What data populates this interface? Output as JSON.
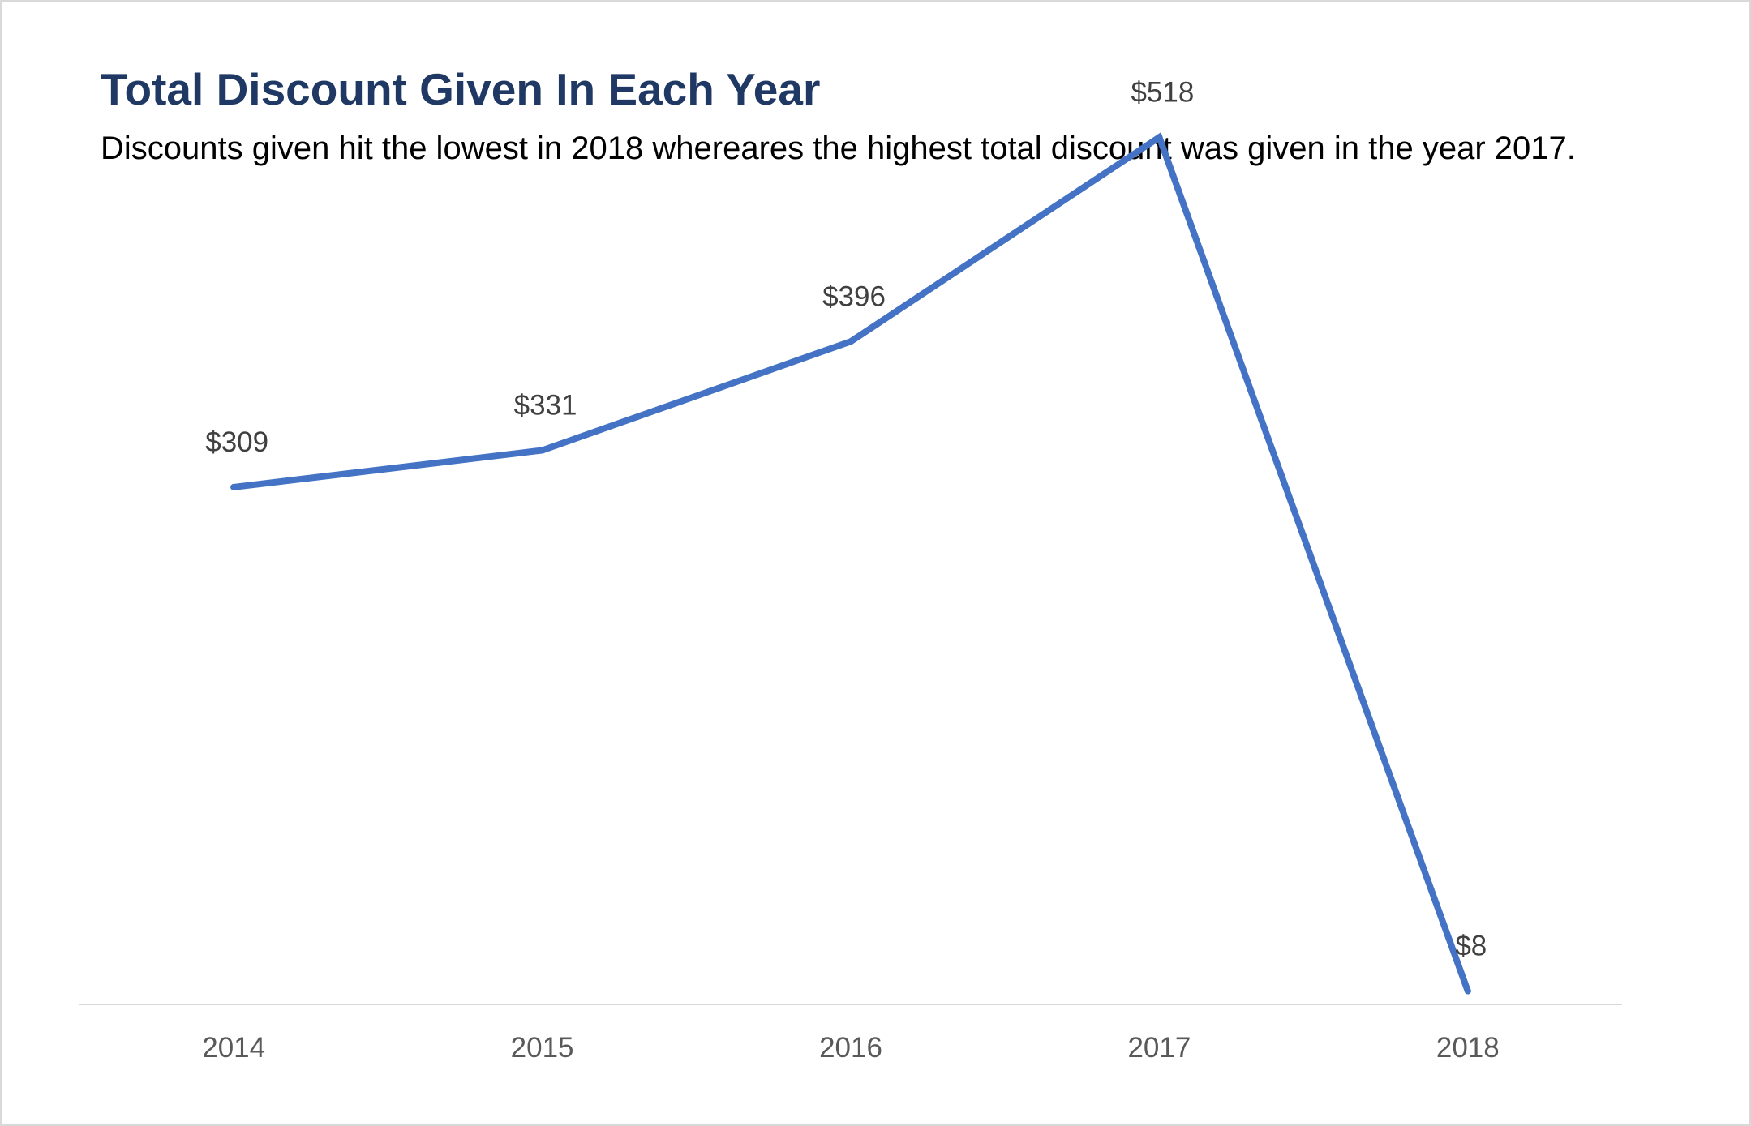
{
  "chart_data": {
    "type": "line",
    "title": "Total Discount Given In Each Year",
    "subtitle": "Discounts given hit the lowest in 2018 whereares the highest total discount was given in the year 2017.",
    "categories": [
      "2014",
      "2015",
      "2016",
      "2017",
      "2018"
    ],
    "series": [
      {
        "values": [
          309,
          331,
          396,
          518,
          8
        ],
        "labels": [
          "$309",
          "$331",
          "$396",
          "$518",
          "$8"
        ],
        "color": "#4472c4"
      }
    ],
    "xlabel": "",
    "ylabel": "",
    "ylim": [
      0,
      600
    ],
    "grid": false,
    "legend": "none",
    "axis_color": "#d9d9d9"
  }
}
